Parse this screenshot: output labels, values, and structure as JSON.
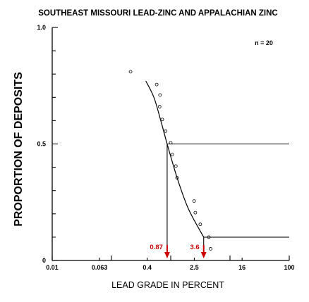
{
  "chart_data": {
    "type": "scatter",
    "title": "SOUTHEAST MISSOURI LEAD-ZINC AND APPALACHIAN ZINC",
    "xlabel": "LEAD GRADE IN PERCENT",
    "ylabel": "PROPORTION OF DEPOSITS",
    "x_scale": "log",
    "xlim": [
      0.01,
      100
    ],
    "ylim": [
      0,
      1.0
    ],
    "x_ticks": [
      "0.01",
      "0.063",
      "0.4",
      "2.5",
      "16",
      "100"
    ],
    "y_ticks": [
      "0",
      "0.5",
      "1.0"
    ],
    "sample_size_label": "n = 20",
    "points": [
      {
        "x": 0.21,
        "y": 0.81
      },
      {
        "x": 0.58,
        "y": 0.755
      },
      {
        "x": 0.66,
        "y": 0.71
      },
      {
        "x": 0.65,
        "y": 0.66
      },
      {
        "x": 0.72,
        "y": 0.605
      },
      {
        "x": 0.82,
        "y": 0.555
      },
      {
        "x": 1.0,
        "y": 0.505
      },
      {
        "x": 1.06,
        "y": 0.455
      },
      {
        "x": 1.22,
        "y": 0.405
      },
      {
        "x": 1.28,
        "y": 0.355
      },
      {
        "x": 2.48,
        "y": 0.255
      },
      {
        "x": 2.6,
        "y": 0.205
      },
      {
        "x": 3.15,
        "y": 0.155
      },
      {
        "x": 4.4,
        "y": 0.1
      },
      {
        "x": 4.7,
        "y": 0.05
      }
    ],
    "fitted_curve": [
      {
        "x": 0.38,
        "y": 0.77
      },
      {
        "x": 0.52,
        "y": 0.7
      },
      {
        "x": 0.68,
        "y": 0.6
      },
      {
        "x": 0.87,
        "y": 0.5
      },
      {
        "x": 1.3,
        "y": 0.35
      },
      {
        "x": 2.0,
        "y": 0.22
      },
      {
        "x": 3.6,
        "y": 0.1
      }
    ],
    "reference_lines": [
      {
        "y": 0.5,
        "x": 0.87,
        "label": "0.87",
        "color": "#cc0000"
      },
      {
        "y": 0.1,
        "x": 3.6,
        "label": "3.6",
        "color": "#cc0000"
      }
    ]
  }
}
